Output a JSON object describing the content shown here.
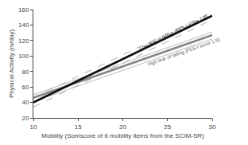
{
  "chart_data": {
    "type": "line",
    "x": [
      10,
      30
    ],
    "xlabel": "Mobility (Somscore of 6 mobility items from the SCIM-SR)",
    "ylabel": "Physical Activity (m/day)",
    "xlim": [
      10,
      30
    ],
    "ylim": [
      20,
      160
    ],
    "xticks": [
      10,
      15,
      20,
      25,
      30
    ],
    "yticks": [
      20,
      40,
      60,
      80,
      100,
      120,
      140,
      160
    ],
    "grid": false,
    "series": [
      {
        "color": "#aaaaaa",
        "line_style": "dashed",
        "values": [
          46,
          157
        ]
      },
      {
        "color": "#aaaaaa",
        "line_style": "dashed",
        "values": [
          34,
          147
        ]
      },
      {
        "color": "#bbbbbb",
        "line_style": "solid",
        "values": [
          50,
          131
        ]
      },
      {
        "color": "#bbbbbb",
        "line_style": "solid",
        "values": [
          41,
          122
        ]
      },
      {
        "color": "#888888",
        "line_style": "solid",
        "values": [
          46,
          127
        ]
      },
      {
        "color": "#111111",
        "line_style": "solid",
        "values": [
          40,
          152
        ]
      }
    ],
    "annotations": [
      {
        "text": "Low fear of falling (FES-I score 1.4)",
        "x": 21.5,
        "y": 104,
        "color": "#111111"
      },
      {
        "text": "High fear of falling (FES-I score 1.9)",
        "x": 22.5,
        "y": 84,
        "color": "#555555"
      }
    ]
  }
}
